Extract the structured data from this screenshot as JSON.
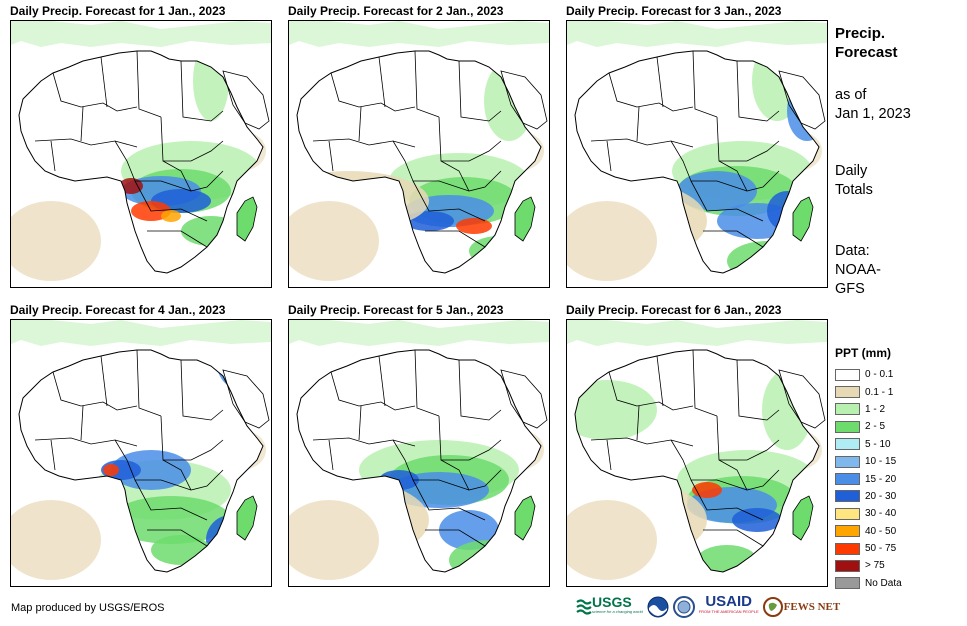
{
  "panels": [
    {
      "title": "Daily Precip. Forecast for 1 Jan., 2023"
    },
    {
      "title": "Daily Precip. Forecast for 2 Jan., 2023"
    },
    {
      "title": "Daily Precip. Forecast for 3 Jan., 2023"
    },
    {
      "title": "Daily Precip. Forecast for 4 Jan., 2023"
    },
    {
      "title": "Daily Precip. Forecast for 5 Jan., 2023"
    },
    {
      "title": "Daily Precip. Forecast for 6 Jan., 2023"
    }
  ],
  "sidebar": {
    "title_line1": "Precip.",
    "title_line2": "Forecast",
    "asof_line1": "as of",
    "asof_line2": "Jan 1, 2023",
    "daily_line1": "Daily",
    "daily_line2": "Totals",
    "data_line1": "Data:",
    "data_line2": "NOAA-",
    "data_line3": "GFS"
  },
  "legend": {
    "title": "PPT (mm)",
    "items": [
      {
        "label": "0 - 0.1",
        "color": "#ffffff"
      },
      {
        "label": "0.1 - 1",
        "color": "#e8d9b5"
      },
      {
        "label": "1 - 2",
        "color": "#b8f0b0"
      },
      {
        "label": "2 - 5",
        "color": "#6ddc6d"
      },
      {
        "label": "5 - 10",
        "color": "#b0ecf4"
      },
      {
        "label": "10 - 15",
        "color": "#7fb8ec"
      },
      {
        "label": "15 - 20",
        "color": "#4a8ee8"
      },
      {
        "label": "20 - 30",
        "color": "#1f5fd8"
      },
      {
        "label": "30 - 40",
        "color": "#ffe680"
      },
      {
        "label": "40 - 50",
        "color": "#ffa500"
      },
      {
        "label": "50 - 75",
        "color": "#ff3a00"
      },
      {
        "label": "> 75",
        "color": "#a01010"
      },
      {
        "label": "No Data",
        "color": "#999999"
      }
    ]
  },
  "credit": "Map produced by USGS/EROS",
  "logos": {
    "usgs": "USGS",
    "usgs_tagline": "science for a changing world",
    "usaid": "USAID",
    "usaid_tagline": "FROM THE AMERICAN PEOPLE",
    "fewsnet": "FEWS NET"
  }
}
